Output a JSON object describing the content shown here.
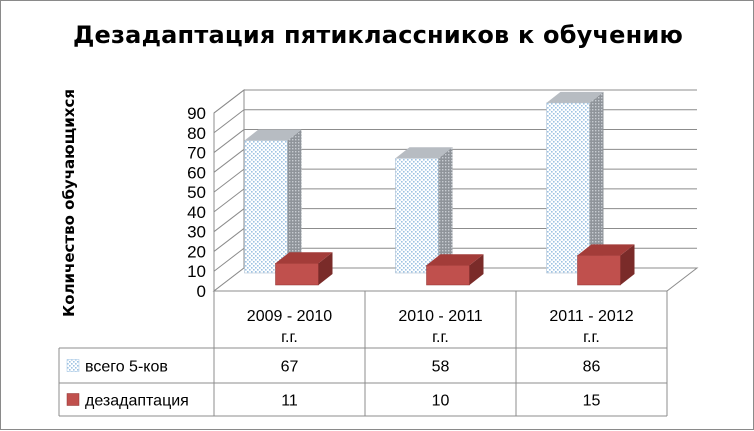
{
  "chart_data": {
    "type": "bar",
    "title": "Дезадаптация пятиклассников к обучению",
    "ylabel": "Количество обучающихся",
    "xlabel": "",
    "categories": [
      [
        "2009 - 2010",
        "г.г."
      ],
      [
        "2010 - 2011",
        "г.г."
      ],
      [
        "2011 - 2012",
        "г.г."
      ]
    ],
    "series": [
      {
        "name": "всего 5-ков",
        "values": [
          67,
          58,
          86
        ],
        "color": "#dbe9f5",
        "pattern": "dotted-light-blue"
      },
      {
        "name": "дезадаптация",
        "values": [
          11,
          10,
          15
        ],
        "color": "#c0504d"
      }
    ],
    "ylim": [
      0,
      90
    ],
    "yticks": [
      0,
      10,
      20,
      30,
      40,
      50,
      60,
      70,
      80,
      90
    ],
    "grid": true,
    "style": "3d-clustered-column",
    "legend": "data-table"
  }
}
